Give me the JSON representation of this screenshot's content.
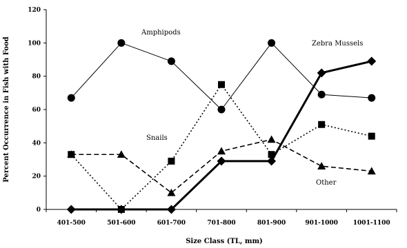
{
  "chart_data": {
    "type": "line",
    "title": "",
    "xlabel": "Size Class (TL, mm)",
    "ylabel": "Percent Occurrence in Fish with Food",
    "categories": [
      "401-500",
      "501-600",
      "601-700",
      "701-800",
      "801-900",
      "901-1000",
      "1001-1100"
    ],
    "ylim": [
      0,
      120
    ],
    "yticks": [
      "0",
      "20",
      "40",
      "60",
      "80",
      "100",
      "120"
    ],
    "grid": false,
    "legend": "none",
    "series": [
      {
        "name": "Amphipods",
        "marker": "circle",
        "line": "solid-thin",
        "values": [
          67,
          100,
          89,
          60,
          100,
          69,
          67
        ]
      },
      {
        "name": "Zebra Mussels",
        "marker": "diamond",
        "line": "solid-thick",
        "values": [
          0,
          0,
          0,
          29,
          29,
          82,
          89
        ]
      },
      {
        "name": "Snails",
        "marker": "square",
        "line": "dotted",
        "values": [
          33,
          0,
          29,
          75,
          33,
          51,
          44
        ]
      },
      {
        "name": "Other",
        "marker": "triangle",
        "line": "dashed",
        "values": [
          33,
          33,
          10,
          35,
          42,
          26,
          23
        ]
      }
    ],
    "annotations": [
      {
        "text": "Amphipods",
        "series": "Amphipods"
      },
      {
        "text": "Zebra Mussels",
        "series": "Zebra Mussels"
      },
      {
        "text": "Snails",
        "series": "Snails"
      },
      {
        "text": "Other",
        "series": "Other"
      }
    ]
  }
}
